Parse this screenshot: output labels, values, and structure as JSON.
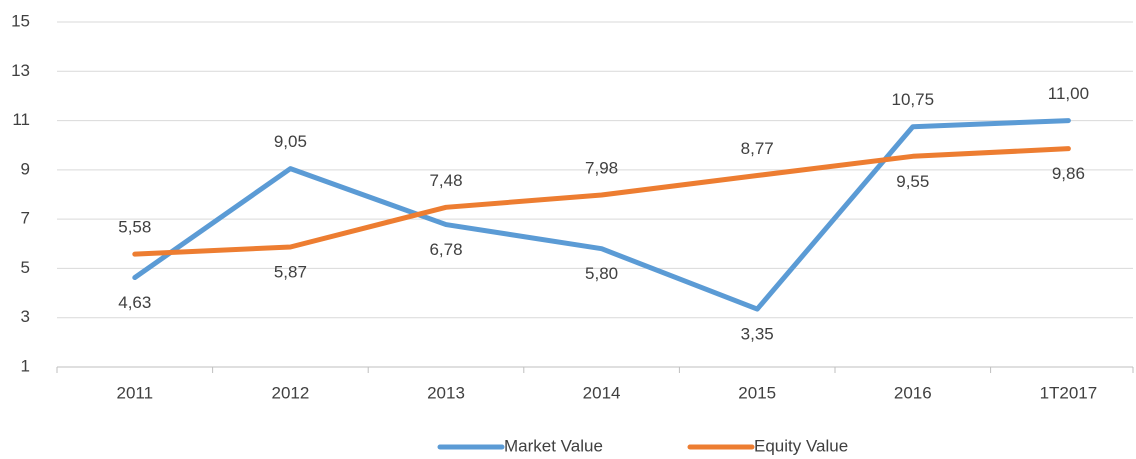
{
  "chart_data": {
    "type": "line",
    "categories": [
      "2011",
      "2012",
      "2013",
      "2014",
      "2015",
      "2016",
      "1T2017"
    ],
    "series": [
      {
        "name": "Market Value",
        "color": "#5b9bd5",
        "values": [
          4.63,
          9.05,
          6.78,
          5.8,
          3.35,
          10.75,
          11.0
        ],
        "value_labels": [
          "4,63",
          "9,05",
          "6,78",
          "5,80",
          "3,35",
          "10,75",
          "11,00"
        ]
      },
      {
        "name": "Equity Value",
        "color": "#ed7d31",
        "values": [
          5.58,
          5.87,
          7.48,
          7.98,
          8.77,
          9.55,
          9.86
        ],
        "value_labels": [
          "5,58",
          "5,87",
          "7,48",
          "7,98",
          "8,77",
          "9,55",
          "9,86"
        ]
      }
    ],
    "ylim": [
      1,
      15
    ],
    "yticks": [
      1,
      3,
      5,
      7,
      9,
      11,
      13,
      15
    ],
    "grid": true,
    "legend": "bottom"
  }
}
